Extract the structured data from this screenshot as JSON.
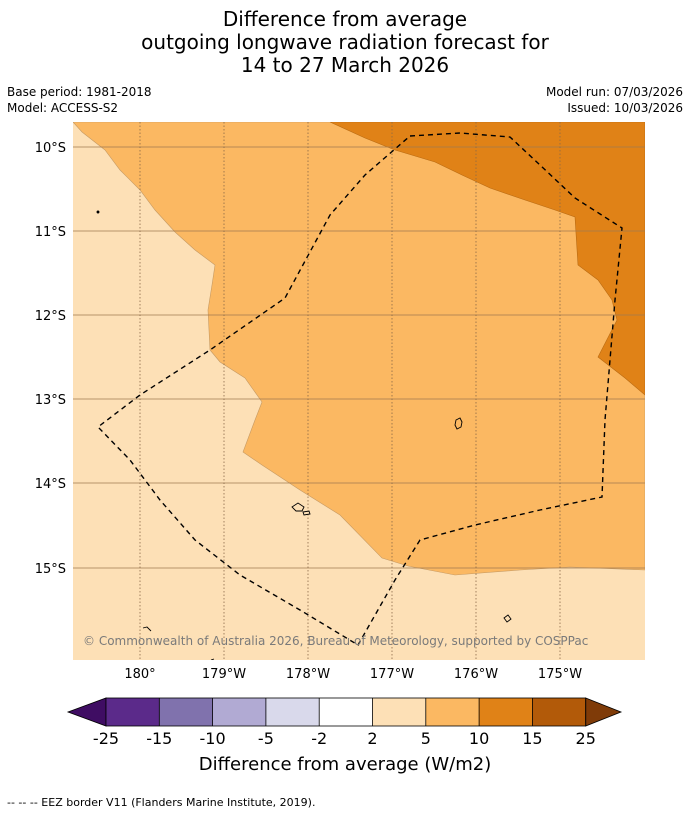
{
  "title": {
    "line1": "Difference from average",
    "line2": "outgoing longwave radiation forecast for",
    "line3": "14 to 27 March 2026"
  },
  "meta": {
    "base_period": "Base period: 1981-2018",
    "model": "Model: ACCESS-S2",
    "model_run": "Model run: 07/03/2026",
    "issued": "Issued: 10/03/2026"
  },
  "map": {
    "latitude_labels": [
      "10°S",
      "11°S",
      "12°S",
      "13°S",
      "14°S",
      "15°S"
    ],
    "longitude_labels": [
      "180°",
      "179°W",
      "178°W",
      "177°W",
      "176°W",
      "175°W"
    ],
    "copyright": "© Commonwealth of Australia 2026, Bureau of Meteorology, supported by COSPPac",
    "colors": {
      "level_2_5": "#fde0b6",
      "level_5_10": "#fbb862",
      "level_10_15": "#e08217",
      "grid": "#a07a50",
      "eez_border": "#000000",
      "land_outline": "#000000"
    }
  },
  "colorbar": {
    "ticks": [
      "-25",
      "-15",
      "-10",
      "-5",
      "-2",
      "2",
      "5",
      "10",
      "15",
      "25"
    ],
    "colors": [
      "#3f0d63",
      "#5b2a8a",
      "#8072ad",
      "#b1aad3",
      "#d9d9eb",
      "#ffffff",
      "#fde0b6",
      "#fbb862",
      "#e08217",
      "#b25a09",
      "#7f3b08"
    ],
    "label": "Difference from average (W/m2)"
  },
  "footnote": "--  --  -- EEZ border V11 (Flanders Marine Institute, 2019)."
}
